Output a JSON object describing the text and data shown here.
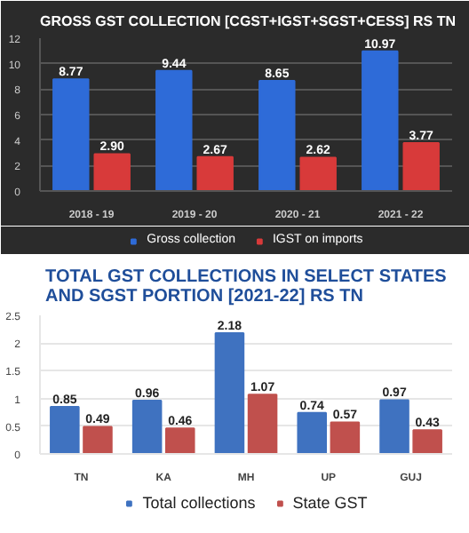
{
  "chart_data": [
    {
      "type": "bar",
      "title": "GROSS GST COLLECTION [CGST+IGST+SGST+CESS] RS TN",
      "categories": [
        "2018 - 19",
        "2019 - 20",
        "2020 - 21",
        "2021 - 22"
      ],
      "series": [
        {
          "name": "Gross collection",
          "color": "#2e6bd8",
          "values": [
            8.77,
            9.44,
            8.65,
            10.97
          ],
          "value_labels": [
            "8.77",
            "9.44",
            "8.65",
            "10.97"
          ]
        },
        {
          "name": "IGST on imports",
          "color": "#d83a3a",
          "values": [
            2.9,
            2.67,
            2.62,
            3.77
          ],
          "value_labels": [
            "2.90",
            "2.67",
            "2.62",
            "3.77"
          ]
        }
      ],
      "ylim": [
        0,
        12
      ],
      "yticks": [
        0,
        2,
        4,
        6,
        8,
        10,
        12
      ],
      "grid": "y",
      "legend": "bottom"
    },
    {
      "type": "bar",
      "title": "TOTAL GST COLLECTIONS IN SELECT STATES AND SGST PORTION [2021-22] RS TN",
      "categories": [
        "TN",
        "KA",
        "MH",
        "UP",
        "GUJ"
      ],
      "series": [
        {
          "name": "Total collections",
          "color": "#3f72c0",
          "values": [
            0.85,
            0.96,
            2.18,
            0.74,
            0.97
          ],
          "value_labels": [
            "0.85",
            "0.96",
            "2.18",
            "0.74",
            "0.97"
          ]
        },
        {
          "name": "State GST",
          "color": "#c0504d",
          "values": [
            0.49,
            0.46,
            1.07,
            0.57,
            0.43
          ],
          "value_labels": [
            "0.49",
            "0.46",
            "1.07",
            "0.57",
            "0.43"
          ]
        }
      ],
      "ylim": [
        0,
        2.5
      ],
      "yticks": [
        0,
        0.5,
        1,
        1.5,
        2,
        2.5
      ],
      "grid": "y",
      "legend": "bottom"
    }
  ]
}
